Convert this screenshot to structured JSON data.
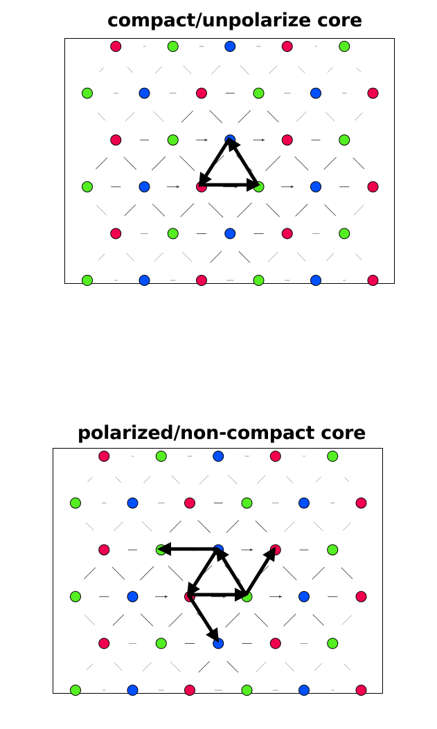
{
  "colors": {
    "red": "#f0004f",
    "green": "#55ee22",
    "blue": "#0050ff",
    "arrow": "#000000",
    "frame": "#000000"
  },
  "lattice": {
    "rows": 6,
    "cols": 6,
    "row_pattern": [
      [
        "red",
        "green",
        "blue",
        "red",
        "green"
      ],
      [
        "green",
        "blue",
        "red",
        "green",
        "blue",
        "red"
      ],
      [
        "red",
        "green",
        "blue",
        "red",
        "green"
      ],
      [
        "green",
        "blue",
        "red",
        "green",
        "blue",
        "red"
      ],
      [
        "red",
        "green",
        "blue",
        "red",
        "green"
      ],
      [
        "green",
        "blue",
        "red",
        "green",
        "blue",
        "red"
      ]
    ]
  },
  "panels": [
    {
      "title": "compact/unpolarize core",
      "core_arrows": [
        {
          "from": [
            2,
            2
          ],
          "to": [
            3,
            1.5
          ]
        },
        {
          "from": [
            3,
            1.5
          ],
          "to": [
            4,
            2
          ]
        },
        {
          "from": [
            4,
            2
          ],
          "to": [
            2,
            2
          ]
        }
      ]
    },
    {
      "title": "polarized/non-compact core",
      "core_arrows": [
        {
          "from": [
            2,
            2
          ],
          "to": [
            3,
            1.5
          ]
        },
        {
          "from": [
            3,
            1.5
          ],
          "to": [
            4,
            2
          ]
        },
        {
          "from": [
            4,
            2
          ],
          "to": [
            2,
            2
          ]
        },
        {
          "from": [
            3,
            1.5
          ],
          "to": [
            1.5,
            1.0
          ]
        },
        {
          "from": [
            4,
            2
          ],
          "to": [
            4.5,
            1.5
          ]
        },
        {
          "from": [
            2,
            2
          ],
          "to": [
            2.5,
            2.5
          ]
        }
      ]
    }
  ]
}
